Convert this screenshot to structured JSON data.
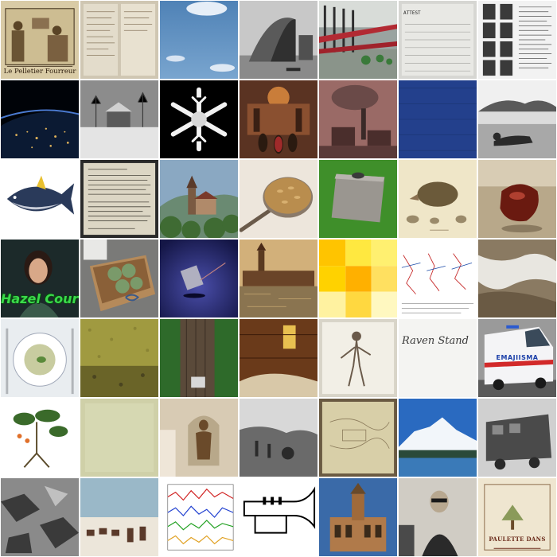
{
  "grid": {
    "columns": 7,
    "rows": 7
  },
  "tiles": [
    {
      "subject": "engraving-shop-scene",
      "caption": "Le Pelletier Fourreur",
      "palette": [
        "#d9cba6",
        "#3b2a16"
      ]
    },
    {
      "subject": "handwritten-ledger",
      "palette": [
        "#e3dccb",
        "#8a7a60"
      ]
    },
    {
      "subject": "blue-sky-clouds",
      "palette": [
        "#5d8fbf",
        "#e6eef7"
      ]
    },
    {
      "subject": "bw-quonset-hut",
      "palette": [
        "#a0a0a0",
        "#303030"
      ]
    },
    {
      "subject": "red-iron-fence",
      "palette": [
        "#b22a33",
        "#2d2d2d"
      ]
    },
    {
      "subject": "index-card",
      "caption": "ATTEST",
      "palette": [
        "#e8e8e4",
        "#8a8a8a"
      ]
    },
    {
      "subject": "yearbook-portraits",
      "palette": [
        "#f2f2f2",
        "#3a3a3a"
      ]
    },
    {
      "subject": "earth-night-lights",
      "palette": [
        "#06101f",
        "#e0b25a"
      ]
    },
    {
      "subject": "snowy-village-photo",
      "palette": [
        "#8c8c8c",
        "#e4e4e4"
      ]
    },
    {
      "subject": "snowflake",
      "palette": [
        "#000000",
        "#f2f2f2"
      ]
    },
    {
      "subject": "fantasy-painting-cathedral",
      "palette": [
        "#5a3322",
        "#c97d3a"
      ]
    },
    {
      "subject": "industrial-smoke-stack",
      "palette": [
        "#9a6a66",
        "#4a2e2c"
      ]
    },
    {
      "subject": "blue-fabric",
      "palette": [
        "#23408c",
        "#1b3370"
      ]
    },
    {
      "subject": "man-reclining-field",
      "palette": [
        "#bdbdbd",
        "#2a2a2a"
      ]
    },
    {
      "subject": "tuna-fish",
      "palette": [
        "#ffffff",
        "#2a3a5a"
      ]
    },
    {
      "subject": "typewritten-page",
      "palette": [
        "#dcd6c4",
        "#4a463c"
      ]
    },
    {
      "subject": "hilltop-castle",
      "palette": [
        "#6a8aa8",
        "#3f6b33"
      ]
    },
    {
      "subject": "spoon-of-oats",
      "palette": [
        "#ede6dc",
        "#b98d4e"
      ]
    },
    {
      "subject": "grave-slab-grass",
      "palette": [
        "#3f8f2a",
        "#9a9690"
      ]
    },
    {
      "subject": "hedgehog-illustration",
      "palette": [
        "#efe6c8",
        "#6b5a3a"
      ]
    },
    {
      "subject": "amber-gem",
      "palette": [
        "#b8a88a",
        "#6a1a10"
      ]
    },
    {
      "subject": "movie-poster-woman",
      "caption": "Hazel Court",
      "palette": [
        "#1c2a2a",
        "#3ad94a"
      ]
    },
    {
      "subject": "box-of-vegetables",
      "palette": [
        "#b58a5a",
        "#7a9a6a"
      ]
    },
    {
      "subject": "jewel-on-purple",
      "palette": [
        "#2a2e7a",
        "#b0b0c0"
      ]
    },
    {
      "subject": "river-town-painting",
      "palette": [
        "#d2b07a",
        "#5a3a20"
      ]
    },
    {
      "subject": "yellow-heatmap",
      "palette": [
        "#ffd400",
        "#fff2a0"
      ]
    },
    {
      "subject": "scientific-figure",
      "palette": [
        "#ffffff",
        "#c62828"
      ]
    },
    {
      "subject": "satellite-mountains",
      "palette": [
        "#8a7a62",
        "#e8e6e0"
      ]
    },
    {
      "subject": "soup-bowl",
      "palette": [
        "#e9edf0",
        "#a0b080"
      ]
    },
    {
      "subject": "gravel-texture",
      "palette": [
        "#a09a40",
        "#6a6428"
      ]
    },
    {
      "subject": "tree-trunk-cup",
      "palette": [
        "#2e6a2a",
        "#5a4a3a"
      ]
    },
    {
      "subject": "wooden-cabin-interior",
      "palette": [
        "#6a3a1a",
        "#e8c050"
      ]
    },
    {
      "subject": "anatomy-illustration",
      "palette": [
        "#f2efe6",
        "#6a5a4a"
      ]
    },
    {
      "subject": "handwriting-note",
      "caption": "Raven Stand",
      "palette": [
        "#f4f4f2",
        "#4a4a4a"
      ]
    },
    {
      "subject": "ambulance",
      "caption": "EMAJIISMA",
      "palette": [
        "#f4f4f6",
        "#d22a2a"
      ]
    },
    {
      "subject": "botanical-plant",
      "palette": [
        "#ffffff",
        "#3a6a2a"
      ]
    },
    {
      "subject": "blank-parchment",
      "palette": [
        "#cfd0a8",
        "#b8ba92"
      ]
    },
    {
      "subject": "saint-statue-niche",
      "palette": [
        "#d8cbb4",
        "#6a4a2a"
      ]
    },
    {
      "subject": "bw-battlefield",
      "palette": [
        "#9a9a9a",
        "#2a2a2a"
      ]
    },
    {
      "subject": "old-map",
      "palette": [
        "#d8cfa8",
        "#8a7a5a"
      ]
    },
    {
      "subject": "snowy-mountain-lake",
      "palette": [
        "#2a6ac0",
        "#f2f6fa"
      ]
    },
    {
      "subject": "steam-locomotive",
      "palette": [
        "#b0b0b0",
        "#2a2a2a"
      ]
    },
    {
      "subject": "bw-rock-rubble",
      "palette": [
        "#8a8a8a",
        "#3a3a3a"
      ]
    },
    {
      "subject": "reindeer-caravan",
      "palette": [
        "#c8c0b0",
        "#5a3a2a"
      ]
    },
    {
      "subject": "line-chart-colored",
      "palette": [
        "#ffffff",
        "#d0d0d0"
      ]
    },
    {
      "subject": "trumpet-silhouette",
      "palette": [
        "#ffffff",
        "#000000"
      ]
    },
    {
      "subject": "ornate-church",
      "palette": [
        "#3a6aa8",
        "#b07a4a"
      ]
    },
    {
      "subject": "man-with-sunglasses",
      "palette": [
        "#d0ccc4",
        "#2a2a2a"
      ]
    },
    {
      "subject": "vintage-poster",
      "caption": "PAULETTE DANS",
      "palette": [
        "#efe6d0",
        "#6a2a1a"
      ]
    }
  ]
}
